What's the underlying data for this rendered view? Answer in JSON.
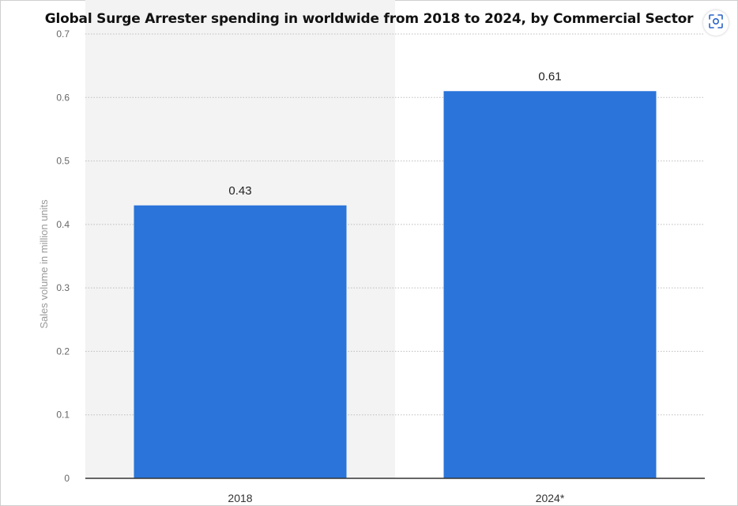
{
  "chart_data": {
    "type": "bar",
    "title": "Global Surge Arrester spending in worldwide from 2018 to 2024, by Commercial Sector",
    "categories": [
      "2018",
      "2024*"
    ],
    "values": [
      0.43,
      0.61
    ],
    "data_labels": [
      "0.43",
      "0.61"
    ],
    "xlabel": "",
    "ylabel": "Sales volume in million units",
    "ylim": [
      0,
      0.7
    ],
    "yticks": [
      "0",
      "0.1",
      "0.2",
      "0.3",
      "0.4",
      "0.5",
      "0.6",
      "0.7"
    ],
    "grid": true,
    "legend": "none",
    "bar_color": "#2a74da"
  },
  "toolbar": {
    "zoom_icon": "focus-scan-icon"
  }
}
